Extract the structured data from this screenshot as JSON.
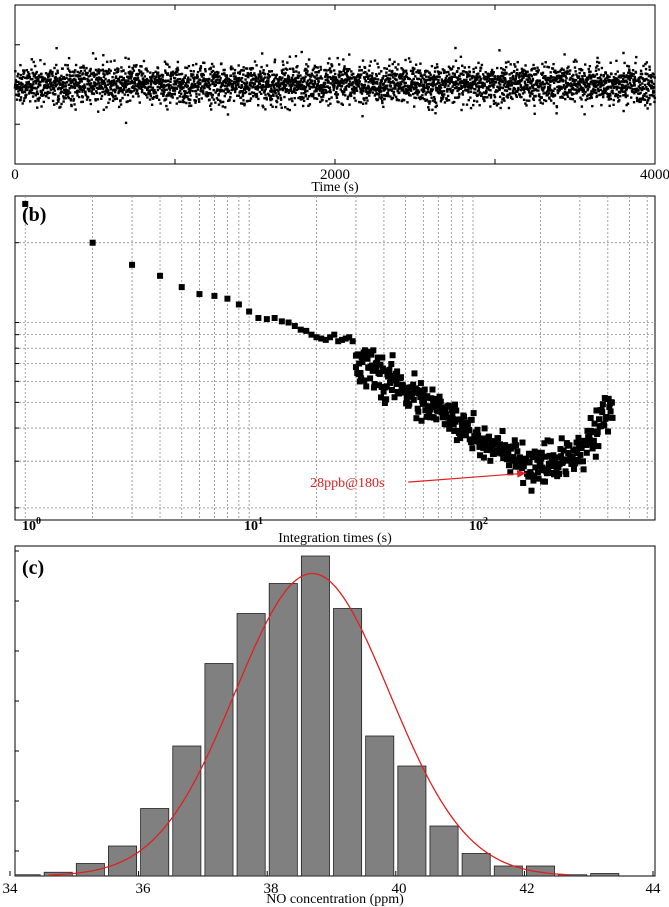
{
  "colors": {
    "fit": "#e02020",
    "bar": "#808080",
    "bar_edge": "#202020",
    "marker": "#000000",
    "annotation": "#e02020"
  },
  "chart_data": [
    {
      "panel": "a",
      "type": "scatter",
      "xlabel": "Time (s)",
      "xlim": [
        0,
        4000
      ],
      "xticks": [
        0,
        2000,
        4000
      ],
      "xtick_labels": [
        "0",
        "2000",
        "4000"
      ],
      "y_relative": {
        "mean": 0.5,
        "spread": 0.06,
        "outlier_spread": 0.12
      },
      "n_points": 4000,
      "grid": false
    },
    {
      "panel": "b",
      "label": "(b)",
      "type": "scatter",
      "scale": "log-log",
      "xlabel": "Integration times  (s)",
      "xlim": [
        0.9,
        650
      ],
      "xticks": [
        1,
        10,
        100
      ],
      "xtick_labels": [
        "10",
        "10",
        "10"
      ],
      "xtick_exponents": [
        "0",
        "1",
        "2"
      ],
      "ylim": [
        0.018,
        0.3
      ],
      "grid": true,
      "points": {
        "x": [
          1,
          2,
          3,
          4,
          5,
          6,
          7,
          8,
          9,
          10,
          11,
          12,
          13,
          14,
          15,
          16,
          17,
          18,
          19,
          20,
          21,
          22,
          23,
          24,
          25,
          26,
          27,
          28,
          29,
          30
        ],
        "y": [
          0.28,
          0.2,
          0.165,
          0.15,
          0.136,
          0.128,
          0.126,
          0.123,
          0.117,
          0.11,
          0.104,
          0.103,
          0.104,
          0.101,
          0.1,
          0.097,
          0.094,
          0.093,
          0.09,
          0.088,
          0.087,
          0.086,
          0.088,
          0.09,
          0.085,
          0.086,
          0.087,
          0.088,
          0.085,
          0.075
        ]
      },
      "tail": {
        "x_start": 30,
        "x_end": 420,
        "n": 400,
        "y_start": 0.072,
        "y_min": 0.028,
        "x_min": 180,
        "y_end": 0.048
      },
      "annotation": {
        "text": "28ppb@180s",
        "x": 180,
        "y": 0.028
      }
    },
    {
      "panel": "c",
      "label": "(c)",
      "type": "bar",
      "xlabel": "NO concentration (ppm)",
      "xlim": [
        34,
        44
      ],
      "xticks": [
        34,
        36,
        38,
        40,
        42,
        44
      ],
      "xtick_labels": [
        "34",
        "36",
        "38",
        "40",
        "42",
        "44"
      ],
      "ylim": [
        0,
        132
      ],
      "bin_width": 0.5,
      "bin_centers": [
        34.25,
        34.75,
        35.25,
        35.75,
        36.25,
        36.75,
        37.25,
        37.75,
        38.25,
        38.75,
        39.25,
        39.75,
        40.25,
        40.75,
        41.25,
        41.75,
        42.25,
        42.75,
        43.25
      ],
      "values": [
        0.5,
        1.5,
        5,
        12,
        27,
        52,
        85,
        105,
        117,
        128,
        107,
        56,
        44,
        20,
        9,
        4,
        4,
        0.5,
        1
      ],
      "fit": {
        "type": "gaussian",
        "mean": 38.7,
        "sigma": 1.2,
        "amplitude": 121
      }
    }
  ]
}
